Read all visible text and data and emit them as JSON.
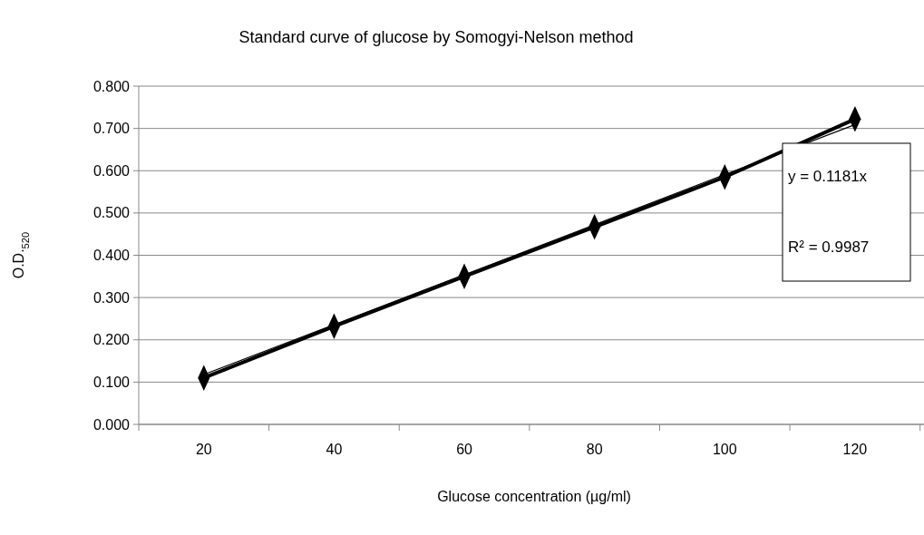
{
  "chart_data": {
    "type": "line",
    "title": "Standard curve of glucose by Somogyi-Nelson method",
    "xlabel": "Glucose concentration (µg/ml)",
    "ylabel": "O.D.$_{520}$",
    "categories": [
      "20",
      "40",
      "60",
      "80",
      "100",
      "120"
    ],
    "series": [
      {
        "color": "#000000",
        "values": [
          0.11,
          0.232,
          0.35,
          0.467,
          0.585,
          0.722
        ],
        "marker": "diamond"
      },
      {
        "type": "line",
        "color": "#000000",
        "values": [
          0.118,
          0.236,
          0.354,
          0.472,
          0.591,
          0.709
        ],
        "marker": "none"
      }
    ],
    "ylim": [
      0,
      0.8
    ],
    "yticks": [
      {
        "value": 0,
        "label": "0.000"
      },
      {
        "value": 0.1,
        "label": "0.100"
      },
      {
        "value": 0.2,
        "label": "0.200"
      },
      {
        "value": 0.3,
        "label": "0.300"
      },
      {
        "value": 0.4,
        "label": "0.400"
      },
      {
        "value": 0.5,
        "label": "0.500"
      },
      {
        "value": 0.6,
        "label": "0.600"
      },
      {
        "value": 0.7,
        "label": "0.700"
      },
      {
        "value": 0.8,
        "label": "0.800"
      }
    ],
    "grid": "y",
    "annotations": [
      "y = 0.1181x",
      "R² = 0.9987"
    ]
  }
}
